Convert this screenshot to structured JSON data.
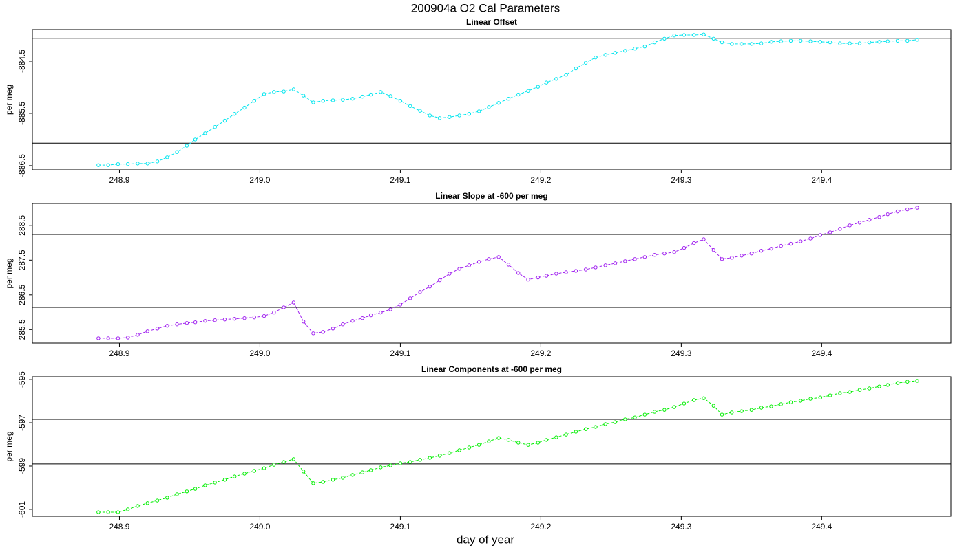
{
  "title": "200904a   O2 Cal Parameters",
  "xlabel": "day of year",
  "xlim": [
    248.838,
    249.492
  ],
  "xticks": [
    248.9,
    {
      "value": 249,
      "label": "249.0"
    },
    249.1,
    249.2,
    249.3,
    249.4
  ],
  "x": [
    248.885,
    248.892,
    248.899,
    248.906,
    248.913,
    248.92,
    248.927,
    248.934,
    248.941,
    248.948,
    248.954,
    248.961,
    248.968,
    248.975,
    248.982,
    248.989,
    248.996,
    249.003,
    249.01,
    249.017,
    249.024,
    249.031,
    249.038,
    249.045,
    249.052,
    249.059,
    249.066,
    249.073,
    249.079,
    249.086,
    249.093,
    249.1,
    249.107,
    249.114,
    249.121,
    249.128,
    249.135,
    249.142,
    249.149,
    249.156,
    249.163,
    249.17,
    249.177,
    249.184,
    249.191,
    249.198,
    249.204,
    249.211,
    249.218,
    249.225,
    249.232,
    249.239,
    249.246,
    249.253,
    249.26,
    249.267,
    249.274,
    249.281,
    249.288,
    249.295,
    249.302,
    249.309,
    249.316,
    249.323,
    249.329,
    249.336,
    249.343,
    249.35,
    249.357,
    249.364,
    249.371,
    249.378,
    249.385,
    249.392,
    249.399,
    249.406,
    249.413,
    249.42,
    249.427,
    249.434,
    249.441,
    249.447,
    249.454,
    249.461,
    249.468
  ],
  "chart_data": [
    {
      "type": "line",
      "title": "Linear Offset",
      "ylabel": "per meg",
      "color": "#00e5ee",
      "ylim": [
        -886.58,
        -883.895
      ],
      "yticks": [
        -884.5,
        -885.5,
        -886.5
      ],
      "hlines": [
        -884.07,
        -886.07
      ],
      "values": [
        -886.49,
        -886.49,
        -886.47,
        -886.47,
        -886.46,
        -886.46,
        -886.42,
        -886.34,
        -886.24,
        -886.12,
        -886.0,
        -885.88,
        -885.76,
        -885.64,
        -885.51,
        -885.39,
        -885.26,
        -885.13,
        -885.09,
        -885.08,
        -885.04,
        -885.16,
        -885.29,
        -885.26,
        -885.25,
        -885.24,
        -885.22,
        -885.18,
        -885.14,
        -885.09,
        -885.17,
        -885.26,
        -885.36,
        -885.45,
        -885.54,
        -885.59,
        -885.57,
        -885.54,
        -885.51,
        -885.46,
        -885.38,
        -885.3,
        -885.22,
        -885.14,
        -885.07,
        -884.99,
        -884.91,
        -884.84,
        -884.76,
        -884.64,
        -884.53,
        -884.43,
        -884.38,
        -884.34,
        -884.3,
        -884.26,
        -884.22,
        -884.14,
        -884.07,
        -884.01,
        -884.0,
        -884.0,
        -883.99,
        -884.07,
        -884.14,
        -884.17,
        -884.17,
        -884.17,
        -884.16,
        -884.13,
        -884.12,
        -884.11,
        -884.11,
        -884.12,
        -884.13,
        -884.14,
        -884.16,
        -884.16,
        -884.16,
        -884.14,
        -884.13,
        -884.12,
        -884.11,
        -884.11,
        -884.09
      ]
    },
    {
      "type": "line",
      "title": "Linear Slope at -600 per meg",
      "ylabel": "per meg",
      "color": "#a020f0",
      "ylim": [
        285.11,
        289.13
      ],
      "yticks": [
        288.5,
        287.5,
        286.5,
        285.5
      ],
      "hlines": [
        288.24,
        286.14
      ],
      "values": [
        285.25,
        285.25,
        285.25,
        285.27,
        285.35,
        285.45,
        285.53,
        285.61,
        285.65,
        285.69,
        285.71,
        285.75,
        285.77,
        285.79,
        285.81,
        285.83,
        285.85,
        285.89,
        285.99,
        286.14,
        286.28,
        285.73,
        285.39,
        285.43,
        285.53,
        285.65,
        285.75,
        285.83,
        285.91,
        285.99,
        286.08,
        286.22,
        286.4,
        286.58,
        286.74,
        286.92,
        287.11,
        287.25,
        287.35,
        287.45,
        287.53,
        287.59,
        287.37,
        287.13,
        286.94,
        287.0,
        287.05,
        287.11,
        287.15,
        287.19,
        287.23,
        287.29,
        287.35,
        287.41,
        287.47,
        287.53,
        287.59,
        287.65,
        287.69,
        287.73,
        287.85,
        287.99,
        288.1,
        287.79,
        287.53,
        287.57,
        287.63,
        287.69,
        287.77,
        287.83,
        287.91,
        287.97,
        288.04,
        288.12,
        288.22,
        288.3,
        288.4,
        288.5,
        288.58,
        288.66,
        288.74,
        288.82,
        288.9,
        288.96,
        289.01
      ]
    },
    {
      "type": "line",
      "title": "Linear Components at -600 per meg",
      "ylabel": "per meg",
      "color": "#00ee00",
      "ylim": [
        -601.32,
        -594.87
      ],
      "yticks": [
        -595,
        -597,
        -599,
        -601
      ],
      "hlines": [
        -596.84,
        -598.9
      ],
      "values": [
        -601.13,
        -601.13,
        -601.13,
        -601.0,
        -600.84,
        -600.71,
        -600.59,
        -600.46,
        -600.3,
        -600.17,
        -600.05,
        -599.89,
        -599.76,
        -599.63,
        -599.48,
        -599.35,
        -599.22,
        -599.1,
        -598.94,
        -598.81,
        -598.68,
        -599.25,
        -599.79,
        -599.73,
        -599.63,
        -599.54,
        -599.41,
        -599.29,
        -599.19,
        -599.06,
        -598.97,
        -598.87,
        -598.81,
        -598.71,
        -598.62,
        -598.52,
        -598.4,
        -598.27,
        -598.14,
        -598.02,
        -597.86,
        -597.7,
        -597.79,
        -597.92,
        -598.02,
        -597.92,
        -597.79,
        -597.67,
        -597.54,
        -597.41,
        -597.29,
        -597.19,
        -597.06,
        -596.97,
        -596.84,
        -596.75,
        -596.62,
        -596.49,
        -596.4,
        -596.27,
        -596.11,
        -595.95,
        -595.86,
        -596.21,
        -596.62,
        -596.52,
        -596.46,
        -596.4,
        -596.3,
        -596.24,
        -596.14,
        -596.05,
        -595.98,
        -595.89,
        -595.83,
        -595.73,
        -595.63,
        -595.57,
        -595.48,
        -595.41,
        -595.32,
        -595.25,
        -595.16,
        -595.1,
        -595.06
      ]
    }
  ]
}
